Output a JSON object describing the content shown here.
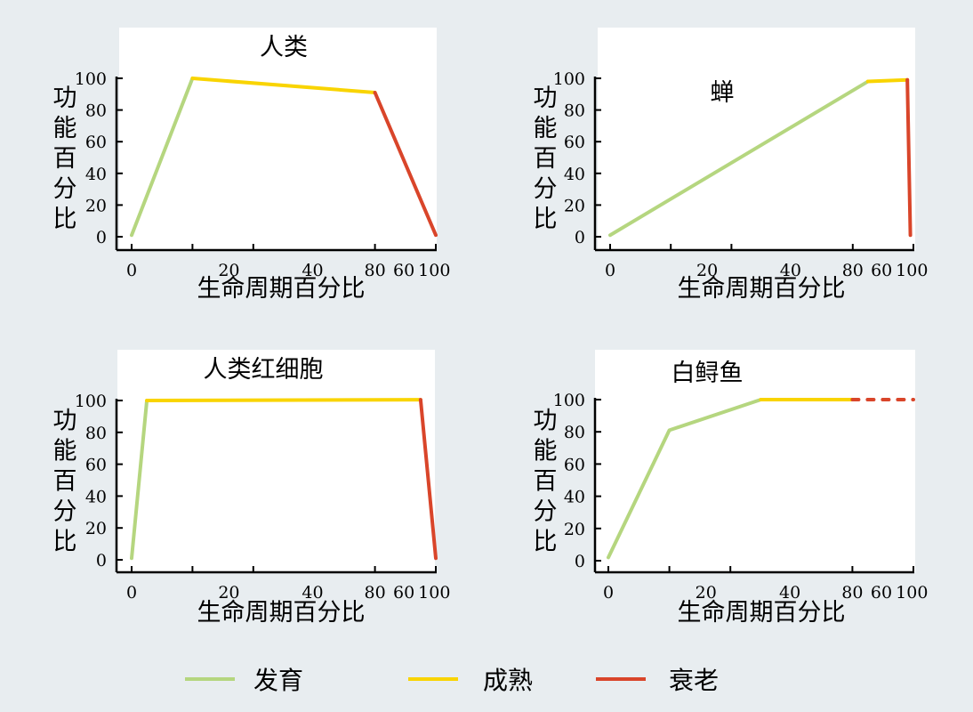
{
  "colors": {
    "background": "#e8edf0",
    "panel": "#ffffff",
    "axis": "#000000",
    "发育": "#b5d67f",
    "成熟": "#f9d400",
    "衰老": "#d9452a"
  },
  "legend": {
    "items": [
      {
        "label": "发育",
        "color": "#b5d67f"
      },
      {
        "label": "成熟",
        "color": "#f9d400"
      },
      {
        "label": "衰老",
        "color": "#d9452a"
      }
    ],
    "position": "bottom"
  },
  "chart_data": [
    {
      "type": "line",
      "title": "人类",
      "xlabel": "生命周期百分比",
      "ylabel": "功能百分比",
      "ylim": [
        0,
        100
      ],
      "x_tick_labels": [
        "0",
        "20",
        "40",
        "80",
        "60",
        "100"
      ],
      "y_tick_labels": [
        "0",
        "20",
        "40",
        "60",
        "80",
        "100"
      ],
      "grid": false,
      "series": [
        {
          "name": "发育",
          "x": [
            0,
            20
          ],
          "y": [
            1,
            100
          ],
          "style": "solid"
        },
        {
          "name": "成熟",
          "x": [
            20,
            80
          ],
          "y": [
            100,
            91
          ],
          "style": "solid"
        },
        {
          "name": "衰老",
          "x": [
            80,
            100
          ],
          "y": [
            91,
            1
          ],
          "style": "solid"
        }
      ]
    },
    {
      "type": "line",
      "title": "蝉",
      "xlabel": "生命周期百分比",
      "ylabel": "功能百分比",
      "ylim": [
        0,
        100
      ],
      "x_tick_labels": [
        "0",
        "20",
        "40",
        "80",
        "60",
        "100"
      ],
      "y_tick_labels": [
        "0",
        "20",
        "40",
        "60",
        "80",
        "100"
      ],
      "grid": false,
      "series": [
        {
          "name": "发育",
          "x": [
            0,
            85
          ],
          "y": [
            1,
            98
          ],
          "style": "solid"
        },
        {
          "name": "成熟",
          "x": [
            85,
            98
          ],
          "y": [
            98,
            99
          ],
          "style": "solid"
        },
        {
          "name": "衰老",
          "x": [
            98,
            99
          ],
          "y": [
            99,
            1
          ],
          "style": "solid"
        }
      ]
    },
    {
      "type": "line",
      "title": "人类红细胞",
      "xlabel": "生命周期百分比",
      "ylabel": "功能百分比",
      "ylim": [
        0,
        100
      ],
      "x_tick_labels": [
        "0",
        "20",
        "40",
        "80",
        "60",
        "100"
      ],
      "y_tick_labels": [
        "0",
        "20",
        "40",
        "60",
        "80",
        "100"
      ],
      "grid": false,
      "series": [
        {
          "name": "发育",
          "x": [
            0,
            5
          ],
          "y": [
            1,
            100
          ],
          "style": "solid"
        },
        {
          "name": "成熟",
          "x": [
            5,
            95
          ],
          "y": [
            100,
            100.5
          ],
          "style": "solid"
        },
        {
          "name": "衰老",
          "x": [
            95,
            100
          ],
          "y": [
            100.5,
            1
          ],
          "style": "solid"
        }
      ]
    },
    {
      "type": "line",
      "title": "白鲟鱼",
      "xlabel": "生命周期百分比",
      "ylabel": "功能百分比",
      "ylim": [
        0,
        100
      ],
      "x_tick_labels": [
        "0",
        "20",
        "40",
        "80",
        "60",
        "100"
      ],
      "y_tick_labels": [
        "0",
        "20",
        "40",
        "60",
        "80",
        "100"
      ],
      "grid": false,
      "series": [
        {
          "name": "发育",
          "x": [
            0,
            20,
            50
          ],
          "y": [
            2,
            81,
            100
          ],
          "style": "solid"
        },
        {
          "name": "成熟",
          "x": [
            50,
            80
          ],
          "y": [
            100,
            100
          ],
          "style": "solid"
        },
        {
          "name": "衰老",
          "x": [
            80,
            100
          ],
          "y": [
            100,
            100
          ],
          "style": "dashed"
        }
      ]
    }
  ]
}
